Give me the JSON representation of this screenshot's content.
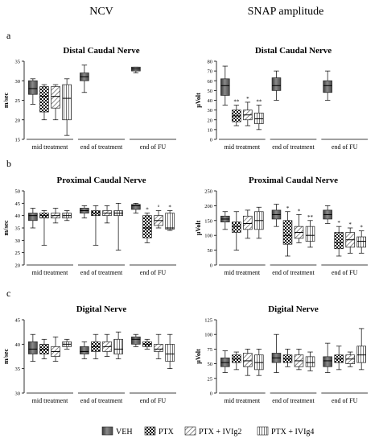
{
  "figure": {
    "col_titles": [
      "NCV",
      "SNAP amplitude"
    ],
    "row_labels": [
      "a",
      "b",
      "c"
    ],
    "legend": {
      "position": "bottom",
      "items": [
        {
          "label": "VEH",
          "pattern": "dark"
        },
        {
          "label": "PTX",
          "pattern": "checker"
        },
        {
          "label": "PTX + IVIg2",
          "pattern": "diag"
        },
        {
          "label": "PTX + IVIg4",
          "pattern": "vert"
        }
      ]
    }
  },
  "chart_data": [
    {
      "type": "boxplot",
      "title": "Distal Caudal Nerve",
      "ylabel": "m/sec",
      "ylim": [
        15,
        35
      ],
      "yticks": [
        15,
        20,
        25,
        30,
        35
      ],
      "categories": [
        "mid treatment",
        "end of treatment",
        "end of FU"
      ],
      "series": [
        "VEH",
        "PTX",
        "PTX + IVIg2",
        "PTX + IVIg4"
      ],
      "boxes": [
        {
          "cat": 0,
          "series": 0,
          "min": 24,
          "q1": 26.5,
          "median": 28,
          "q3": 30,
          "max": 30.5
        },
        {
          "cat": 0,
          "series": 1,
          "min": 20,
          "q1": 22,
          "median": 26,
          "q3": 28.5,
          "max": 29
        },
        {
          "cat": 0,
          "series": 2,
          "min": 20,
          "q1": 23,
          "median": 26,
          "q3": 28.5,
          "max": 29
        },
        {
          "cat": 0,
          "series": 3,
          "min": 16,
          "q1": 20,
          "median": 25.5,
          "q3": 29,
          "max": 30.5
        },
        {
          "cat": 1,
          "series": 0,
          "min": 27,
          "q1": 30,
          "median": 31,
          "q3": 32,
          "max": 34
        },
        {
          "cat": 2,
          "series": 0,
          "min": 32,
          "q1": 32.5,
          "median": 33,
          "q3": 33.5,
          "max": 33.5
        }
      ],
      "annotations": []
    },
    {
      "type": "boxplot",
      "title": "Distal Caudal Nerve",
      "ylabel": "µVolt",
      "ylim": [
        0,
        80
      ],
      "yticks": [
        0,
        10,
        20,
        30,
        40,
        50,
        60,
        70,
        80
      ],
      "categories": [
        "mid treatment",
        "end of treatment",
        "end of FU"
      ],
      "series": [
        "VEH",
        "PTX",
        "PTX + IVIg2",
        "PTX + IVIg4"
      ],
      "boxes": [
        {
          "cat": 0,
          "series": 0,
          "min": 35,
          "q1": 45,
          "median": 55,
          "q3": 62,
          "max": 75
        },
        {
          "cat": 0,
          "series": 1,
          "min": 14,
          "q1": 18,
          "median": 24,
          "q3": 30,
          "max": 35
        },
        {
          "cat": 0,
          "series": 2,
          "min": 14,
          "q1": 20,
          "median": 25,
          "q3": 30,
          "max": 38
        },
        {
          "cat": 0,
          "series": 3,
          "min": 10,
          "q1": 16,
          "median": 21,
          "q3": 27,
          "max": 35
        },
        {
          "cat": 1,
          "series": 0,
          "min": 40,
          "q1": 50,
          "median": 55,
          "q3": 63,
          "max": 70
        },
        {
          "cat": 2,
          "series": 0,
          "min": 40,
          "q1": 48,
          "median": 55,
          "q3": 60,
          "max": 70
        }
      ],
      "annotations": [
        {
          "cat": 0,
          "series": 1,
          "text": "**"
        },
        {
          "cat": 0,
          "series": 2,
          "text": "*"
        },
        {
          "cat": 0,
          "series": 3,
          "text": "**"
        }
      ]
    },
    {
      "type": "boxplot",
      "title": "Proximal Caudal Nerve",
      "ylabel": "m/sec",
      "ylim": [
        20,
        50
      ],
      "yticks": [
        20,
        25,
        30,
        35,
        40,
        45,
        50
      ],
      "categories": [
        "mid treatment",
        "end of treatment",
        "end of FU"
      ],
      "series": [
        "VEH",
        "PTX",
        "PTX + IVIg2",
        "PTX + IVIg4"
      ],
      "boxes": [
        {
          "cat": 0,
          "series": 0,
          "min": 35,
          "q1": 38,
          "median": 40,
          "q3": 41,
          "max": 43
        },
        {
          "cat": 0,
          "series": 1,
          "min": 28,
          "q1": 39,
          "median": 40,
          "q3": 41,
          "max": 42
        },
        {
          "cat": 0,
          "series": 2,
          "min": 37,
          "q1": 39,
          "median": 40,
          "q3": 41,
          "max": 43
        },
        {
          "cat": 0,
          "series": 3,
          "min": 38,
          "q1": 39,
          "median": 40,
          "q3": 41,
          "max": 42
        },
        {
          "cat": 1,
          "series": 0,
          "min": 39,
          "q1": 41,
          "median": 42,
          "q3": 43,
          "max": 44
        },
        {
          "cat": 1,
          "series": 1,
          "min": 28,
          "q1": 40,
          "median": 41,
          "q3": 42,
          "max": 44
        },
        {
          "cat": 1,
          "series": 2,
          "min": 37,
          "q1": 40,
          "median": 41,
          "q3": 42,
          "max": 44
        },
        {
          "cat": 1,
          "series": 3,
          "min": 26,
          "q1": 40,
          "median": 41,
          "q3": 42,
          "max": 45
        },
        {
          "cat": 2,
          "series": 0,
          "min": 41,
          "q1": 42.5,
          "median": 44,
          "q3": 44.5,
          "max": 45
        },
        {
          "cat": 2,
          "series": 1,
          "min": 29,
          "q1": 31,
          "median": 35,
          "q3": 40,
          "max": 41
        },
        {
          "cat": 2,
          "series": 2,
          "min": 35,
          "q1": 36,
          "median": 38,
          "q3": 40,
          "max": 42
        },
        {
          "cat": 2,
          "series": 3,
          "min": 34,
          "q1": 34.5,
          "median": 35,
          "q3": 41,
          "max": 42
        }
      ],
      "annotations": [
        {
          "cat": 2,
          "series": 1,
          "text": "*"
        },
        {
          "cat": 2,
          "series": 2,
          "text": "°"
        },
        {
          "cat": 2,
          "series": 3,
          "text": "*"
        }
      ]
    },
    {
      "type": "boxplot",
      "title": "Proximal Caudal Nerve",
      "ylabel": "µVolt",
      "ylim": [
        0,
        250
      ],
      "yticks": [
        0,
        50,
        100,
        150,
        200,
        250
      ],
      "categories": [
        "mid treatment",
        "end of treatment",
        "end of FU"
      ],
      "series": [
        "VEH",
        "PTX",
        "PTX + IVIg2",
        "PTX + IVIg4"
      ],
      "boxes": [
        {
          "cat": 0,
          "series": 0,
          "min": 120,
          "q1": 145,
          "median": 155,
          "q3": 165,
          "max": 180
        },
        {
          "cat": 0,
          "series": 1,
          "min": 50,
          "q1": 110,
          "median": 130,
          "q3": 145,
          "max": 180
        },
        {
          "cat": 0,
          "series": 2,
          "min": 90,
          "q1": 120,
          "median": 140,
          "q3": 165,
          "max": 185
        },
        {
          "cat": 0,
          "series": 3,
          "min": 90,
          "q1": 120,
          "median": 150,
          "q3": 180,
          "max": 195
        },
        {
          "cat": 1,
          "series": 0,
          "min": 130,
          "q1": 155,
          "median": 170,
          "q3": 185,
          "max": 205
        },
        {
          "cat": 1,
          "series": 1,
          "min": 30,
          "q1": 70,
          "median": 100,
          "q3": 150,
          "max": 180
        },
        {
          "cat": 1,
          "series": 2,
          "min": 75,
          "q1": 90,
          "median": 110,
          "q3": 130,
          "max": 170
        },
        {
          "cat": 1,
          "series": 3,
          "min": 60,
          "q1": 80,
          "median": 100,
          "q3": 130,
          "max": 150
        },
        {
          "cat": 2,
          "series": 0,
          "min": 140,
          "q1": 155,
          "median": 170,
          "q3": 185,
          "max": 200
        },
        {
          "cat": 2,
          "series": 1,
          "min": 30,
          "q1": 55,
          "median": 75,
          "q3": 110,
          "max": 130
        },
        {
          "cat": 2,
          "series": 2,
          "min": 40,
          "q1": 60,
          "median": 85,
          "q3": 110,
          "max": 125
        },
        {
          "cat": 2,
          "series": 3,
          "min": 40,
          "q1": 60,
          "median": 80,
          "q3": 95,
          "max": 115
        }
      ],
      "annotations": [
        {
          "cat": 1,
          "series": 1,
          "text": "*"
        },
        {
          "cat": 1,
          "series": 2,
          "text": "*"
        },
        {
          "cat": 1,
          "series": 3,
          "text": "**"
        },
        {
          "cat": 2,
          "series": 1,
          "text": "*"
        },
        {
          "cat": 2,
          "series": 2,
          "text": "*"
        },
        {
          "cat": 2,
          "series": 3,
          "text": "*"
        }
      ]
    },
    {
      "type": "boxplot",
      "title": "Digital Nerve",
      "ylabel": "m/sec",
      "ylim": [
        30,
        45
      ],
      "yticks": [
        30,
        35,
        40,
        45
      ],
      "categories": [
        "mid treatment",
        "end of treatment",
        "end of FU"
      ],
      "series": [
        "VEH",
        "PTX",
        "PTX + IVIg2",
        "PTX + IVIg4"
      ],
      "boxes": [
        {
          "cat": 0,
          "series": 0,
          "min": 36.5,
          "q1": 38,
          "median": 39,
          "q3": 40.5,
          "max": 42
        },
        {
          "cat": 0,
          "series": 1,
          "min": 37,
          "q1": 38,
          "median": 39,
          "q3": 40,
          "max": 41
        },
        {
          "cat": 0,
          "series": 2,
          "min": 36.5,
          "q1": 37.5,
          "median": 38.5,
          "q3": 39.5,
          "max": 41.5
        },
        {
          "cat": 0,
          "series": 3,
          "min": 39,
          "q1": 39.5,
          "median": 40,
          "q3": 40.5,
          "max": 41
        },
        {
          "cat": 1,
          "series": 0,
          "min": 37,
          "q1": 38,
          "median": 38.5,
          "q3": 39.5,
          "max": 40.5
        },
        {
          "cat": 1,
          "series": 1,
          "min": 37,
          "q1": 38.5,
          "median": 39.5,
          "q3": 40.5,
          "max": 42
        },
        {
          "cat": 1,
          "series": 2,
          "min": 37.5,
          "q1": 38.5,
          "median": 39.5,
          "q3": 40.5,
          "max": 42
        },
        {
          "cat": 1,
          "series": 3,
          "min": 37,
          "q1": 38,
          "median": 39,
          "q3": 41,
          "max": 42.5
        },
        {
          "cat": 2,
          "series": 0,
          "min": 39.5,
          "q1": 40,
          "median": 41,
          "q3": 41.5,
          "max": 42
        },
        {
          "cat": 2,
          "series": 1,
          "min": 39,
          "q1": 39.5,
          "median": 40,
          "q3": 40.5,
          "max": 41
        },
        {
          "cat": 2,
          "series": 2,
          "min": 37,
          "q1": 38.5,
          "median": 39,
          "q3": 40,
          "max": 42
        },
        {
          "cat": 2,
          "series": 3,
          "min": 35,
          "q1": 36.5,
          "median": 38,
          "q3": 40,
          "max": 42
        }
      ],
      "annotations": []
    },
    {
      "type": "boxplot",
      "title": "Digital Nerve",
      "ylabel": "µVolt",
      "ylim": [
        0,
        125
      ],
      "yticks": [
        0,
        25,
        50,
        75,
        100,
        125
      ],
      "categories": [
        "mid treatment",
        "end of treatment",
        "end of FU"
      ],
      "series": [
        "VEH",
        "PTX",
        "PTX + IVIg2",
        "PTX + IVIg4"
      ],
      "boxes": [
        {
          "cat": 0,
          "series": 0,
          "min": 35,
          "q1": 45,
          "median": 52,
          "q3": 60,
          "max": 72
        },
        {
          "cat": 0,
          "series": 1,
          "min": 40,
          "q1": 52,
          "median": 58,
          "q3": 65,
          "max": 70
        },
        {
          "cat": 0,
          "series": 2,
          "min": 30,
          "q1": 45,
          "median": 55,
          "q3": 68,
          "max": 75
        },
        {
          "cat": 0,
          "series": 3,
          "min": 30,
          "q1": 40,
          "median": 52,
          "q3": 65,
          "max": 75
        },
        {
          "cat": 1,
          "series": 0,
          "min": 35,
          "q1": 52,
          "median": 60,
          "q3": 68,
          "max": 100
        },
        {
          "cat": 1,
          "series": 1,
          "min": 45,
          "q1": 52,
          "median": 58,
          "q3": 65,
          "max": 75
        },
        {
          "cat": 1,
          "series": 2,
          "min": 40,
          "q1": 45,
          "median": 55,
          "q3": 65,
          "max": 75
        },
        {
          "cat": 1,
          "series": 3,
          "min": 38,
          "q1": 45,
          "median": 52,
          "q3": 62,
          "max": 70
        },
        {
          "cat": 2,
          "series": 0,
          "min": 35,
          "q1": 45,
          "median": 55,
          "q3": 62,
          "max": 85
        },
        {
          "cat": 2,
          "series": 1,
          "min": 40,
          "q1": 52,
          "median": 58,
          "q3": 65,
          "max": 80
        },
        {
          "cat": 2,
          "series": 2,
          "min": 45,
          "q1": 50,
          "median": 58,
          "q3": 65,
          "max": 70
        },
        {
          "cat": 2,
          "series": 3,
          "min": 40,
          "q1": 52,
          "median": 65,
          "q3": 80,
          "max": 110
        }
      ],
      "annotations": []
    }
  ]
}
